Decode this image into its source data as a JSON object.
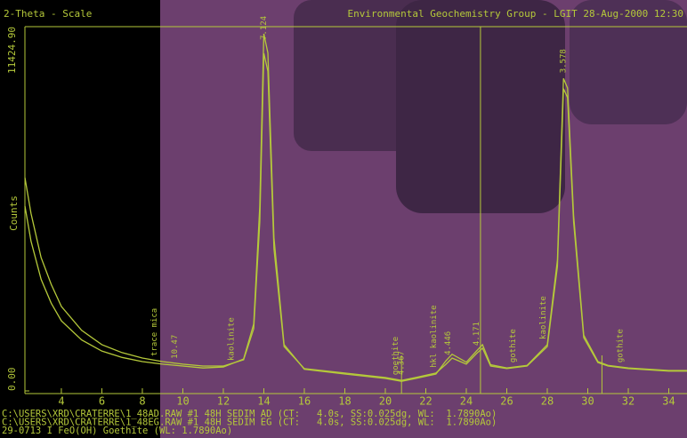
{
  "chart_data": {
    "type": "line",
    "title": "2-Theta - Scale",
    "subtitle": "Environmental Geochemistry Group - LGIT 28-Aug-2000 12:30",
    "y_label": "Counts",
    "color": "#b5c93a",
    "x": [
      2.2,
      2.5,
      3,
      3.5,
      4,
      5,
      6,
      7,
      8,
      9,
      10,
      11,
      12,
      13,
      13.5,
      13.8,
      14,
      14.2,
      14.5,
      15,
      16,
      18,
      20,
      20.8,
      21.5,
      22.5,
      23,
      23.3,
      24,
      24.5,
      24.8,
      25.2,
      26,
      27,
      28,
      28.5,
      28.8,
      29,
      29.3,
      29.8,
      30.5,
      31,
      32,
      34,
      34.9
    ],
    "series": [
      {
        "name": "C:\\USERS\\XRD\\CRATERRE\\1_48AD.RAW #1 48H SEDIM AD (CT:   4.0s, SS:0.025dg, WL:  1.7890Ao)",
        "values": [
          6690,
          5570,
          4180,
          3340,
          2650,
          1900,
          1450,
          1200,
          1030,
          920,
          840,
          780,
          780,
          975,
          1950,
          5300,
          10590,
          10030,
          4460,
          1390,
          700,
          560,
          420,
          330,
          420,
          560,
          840,
          1030,
          840,
          1170,
          1340,
          780,
          700,
          780,
          1390,
          3900,
          9480,
          9200,
          5300,
          1670,
          890,
          780,
          700,
          620,
          620
        ]
      },
      {
        "name": "C:\\USERS\\XRD\\CRATERRE\\1_48EG.RAW #1 48H SEDIM EG (CT:   4.0s, SS:0.025dg, WL:  1.7890Ao)",
        "values": [
          5800,
          4700,
          3500,
          2750,
          2200,
          1600,
          1250,
          1050,
          920,
          840,
          780,
          720,
          750,
          1000,
          2100,
          5800,
          11200,
          10600,
          4800,
          1450,
          680,
          530,
          390,
          300,
          390,
          530,
          950,
          1150,
          900,
          1250,
          1450,
          820,
          720,
          800,
          1450,
          4100,
          9800,
          9500,
          5500,
          1750,
          920,
          800,
          720,
          640,
          640
        ]
      }
    ],
    "xlim": [
      2.2,
      34.9
    ],
    "xticks": [
      4,
      6,
      8,
      10,
      12,
      14,
      16,
      18,
      20,
      22,
      24,
      26,
      28,
      30,
      32,
      34
    ],
    "ylim": [
      0,
      11424.9
    ],
    "yticks": [
      {
        "value": 0,
        "label": "0.00"
      },
      {
        "value": 11424.9,
        "label": "11424.90"
      }
    ],
    "cursor_x": 24.7,
    "reference": {
      "name": "29-0713 I FeO(OH) Goethite (WL: 1.7890Ao)",
      "x": [
        20.8,
        30.7
      ]
    },
    "annotations": [
      {
        "text": "trace mica",
        "x": 8.6
      },
      {
        "text": "10.47",
        "x": 9.6
      },
      {
        "text": "kaolinite",
        "x": 12.4
      },
      {
        "text": "7.124",
        "x": 14.0
      },
      {
        "text": "goethite",
        "x": 20.5
      },
      {
        "text": "4.367",
        "x": 20.8
      },
      {
        "text": "hkl kaolinite",
        "x": 22.4
      },
      {
        "text": "4.446",
        "x": 23.1
      },
      {
        "text": "4.171",
        "x": 24.5
      },
      {
        "text": "gothite",
        "x": 26.3
      },
      {
        "text": "kaolinite",
        "x": 27.8
      },
      {
        "text": "3.578",
        "x": 28.8
      },
      {
        "text": "gothite",
        "x": 31.6
      }
    ]
  }
}
